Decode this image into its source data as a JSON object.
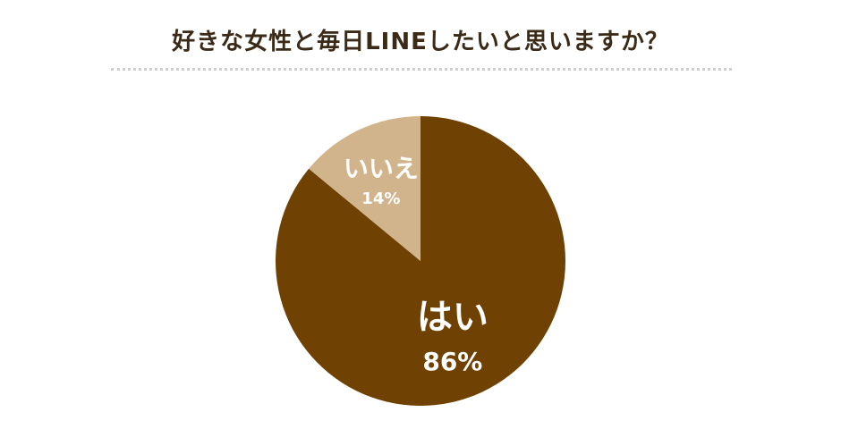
{
  "chart_data": {
    "type": "pie",
    "title": "好きな女性と毎日LINEしたいと思いますか？",
    "slices": [
      {
        "label": "はい",
        "value": 86,
        "value_label": "86%",
        "color": "#6f4102"
      },
      {
        "label": "いいえ",
        "value": 14,
        "value_label": "14%",
        "color": "#d2b48c"
      }
    ],
    "start": "12 o'clock",
    "direction": "clockwise",
    "legend": "none"
  }
}
